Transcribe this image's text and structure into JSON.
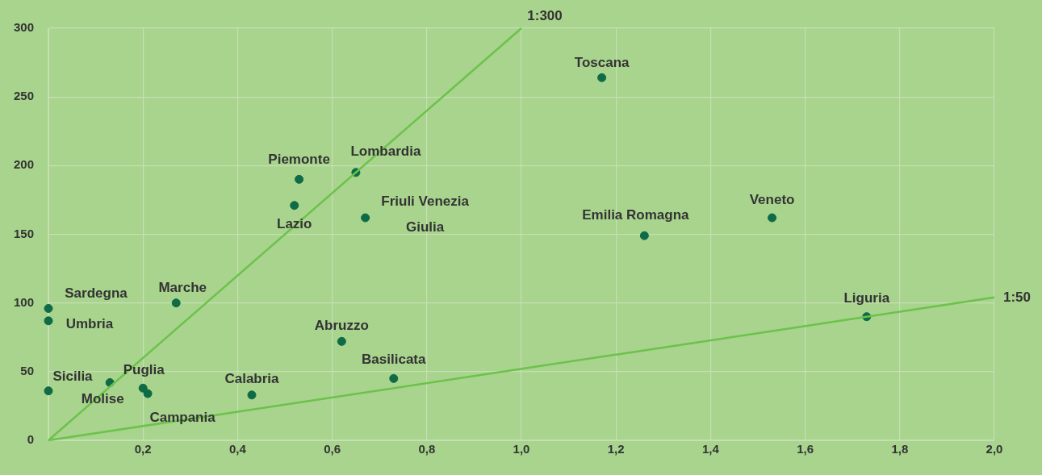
{
  "chart_data": {
    "type": "scatter",
    "xlim": [
      0,
      2
    ],
    "ylim": [
      0,
      300
    ],
    "xticks": [
      {
        "value": 0,
        "label": null
      },
      {
        "value": 0.2,
        "label": "0,2"
      },
      {
        "value": 0.4,
        "label": "0,4"
      },
      {
        "value": 0.6,
        "label": "0,6"
      },
      {
        "value": 0.8,
        "label": "0,8"
      },
      {
        "value": 1.0,
        "label": "1,0"
      },
      {
        "value": 1.2,
        "label": "1,2"
      },
      {
        "value": 1.4,
        "label": "1,4"
      },
      {
        "value": 1.6,
        "label": "1,6"
      },
      {
        "value": 1.8,
        "label": "1,8"
      },
      {
        "value": 2.0,
        "label": "2,0"
      }
    ],
    "yticks": [
      0,
      50,
      100,
      150,
      200,
      250,
      300
    ],
    "grid": true,
    "legend": false,
    "marker": "circle",
    "series": [
      {
        "type": "line",
        "marker": "none",
        "color": "#6cc24a",
        "x": [
          0,
          1
        ],
        "values": [
          0,
          300
        ]
      },
      {
        "type": "line",
        "marker": "none",
        "color": "#6cc24a",
        "x": [
          0,
          2
        ],
        "values": [
          0,
          104
        ]
      },
      {
        "color": "#0e6b45",
        "x": [
          1.17,
          0.65,
          0.53,
          0.52,
          0.67,
          1.26,
          1.53,
          1.73,
          0,
          0,
          0.27,
          0.62,
          0.73,
          0.43,
          0,
          0.13,
          0.2,
          0.21
        ],
        "values": [
          264,
          195,
          190,
          171,
          162,
          149,
          162,
          90,
          96,
          87,
          100,
          72,
          45,
          33,
          36,
          42,
          38,
          34
        ]
      }
    ],
    "annotations": [
      {
        "text": "Toscana",
        "x": 1.17,
        "y": 264
      },
      {
        "text": "Lombardia",
        "x": 0.65,
        "y": 195
      },
      {
        "text": "Piemonte",
        "x": 0.53,
        "y": 190
      },
      {
        "text": "Lazio",
        "x": 0.52,
        "y": 171
      },
      {
        "text": "Friuli Venezia\nGiulia",
        "x": 0.67,
        "y": 162
      },
      {
        "text": "Emilia Romagna",
        "x": 1.26,
        "y": 149
      },
      {
        "text": "Veneto",
        "x": 1.53,
        "y": 162
      },
      {
        "text": "Liguria",
        "x": 1.73,
        "y": 90
      },
      {
        "text": "Sardegna",
        "x": 0,
        "y": 96
      },
      {
        "text": "Umbria",
        "x": 0,
        "y": 87
      },
      {
        "text": "Marche",
        "x": 0.27,
        "y": 100
      },
      {
        "text": "Abruzzo",
        "x": 0.62,
        "y": 72
      },
      {
        "text": "Basilicata",
        "x": 0.73,
        "y": 45
      },
      {
        "text": "Calabria",
        "x": 0.43,
        "y": 33
      },
      {
        "text": "Sicilia",
        "x": 0,
        "y": 36
      },
      {
        "text": "Molise",
        "x": 0.13,
        "y": 42
      },
      {
        "text": "Puglia",
        "x": 0.2,
        "y": 38
      },
      {
        "text": "Campania",
        "x": 0.21,
        "y": 34
      },
      {
        "text": "1:300",
        "x": 1,
        "y": 300
      },
      {
        "text": "1:50",
        "x": 2,
        "y": 104
      }
    ]
  }
}
